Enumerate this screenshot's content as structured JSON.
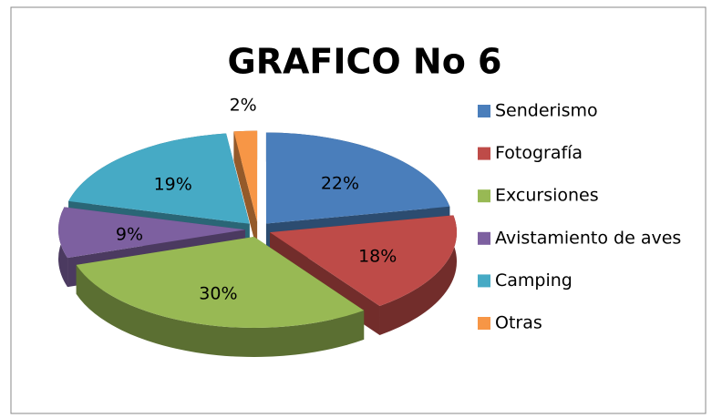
{
  "chart_data": {
    "type": "pie",
    "title": "GRAFICO No 6",
    "categories": [
      "Senderismo",
      "Fotografía",
      "Excursiones",
      "Avistamiento de aves",
      "Camping",
      "Otras"
    ],
    "values": [
      22,
      18,
      30,
      9,
      19,
      2
    ],
    "value_labels": [
      "22%",
      "18%",
      "30%",
      "9%",
      "19%",
      "2%"
    ],
    "colors": [
      "#4a7ebb",
      "#be4b48",
      "#98b954",
      "#7d60a0",
      "#46aac5",
      "#f79646"
    ],
    "legend": "right"
  }
}
